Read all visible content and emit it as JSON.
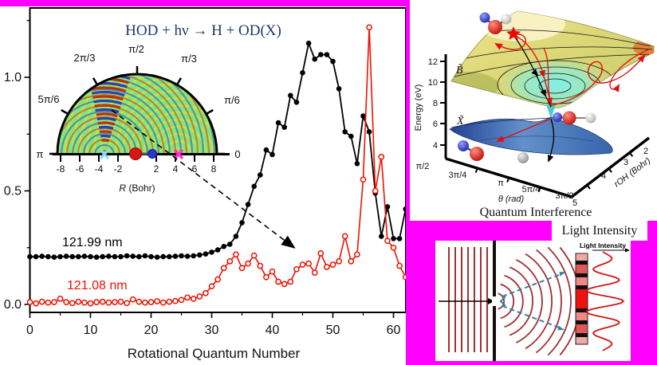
{
  "colors": {
    "background": "#ff00ff",
    "title": "#1f3864",
    "series_black": "#000000",
    "series_red": "#ee1100",
    "inset_green": "#7de87d",
    "wave_maroon": "#a03030",
    "ray_teal": "#3b7f9e"
  },
  "chart_data": {
    "type": "line",
    "title": "HOD + hν → H + OD(X)",
    "xlabel": "Rotational Quantum Number",
    "ylabel": "",
    "xlim": [
      0,
      62
    ],
    "ylim": [
      -0.03,
      1.31
    ],
    "x_ticks": [
      0,
      10,
      20,
      30,
      40,
      50,
      60
    ],
    "y_ticks": [
      "0.0",
      "0.5",
      "1.0"
    ],
    "grid": false,
    "legend_position": "inside-left",
    "series": [
      {
        "name": "121.99 nm",
        "color": "#000000",
        "marker": "filled-circle",
        "values": [
          0.21,
          0.21,
          0.212,
          0.21,
          0.208,
          0.21,
          0.212,
          0.21,
          0.21,
          0.212,
          0.21,
          0.208,
          0.21,
          0.212,
          0.21,
          0.21,
          0.214,
          0.212,
          0.21,
          0.214,
          0.21,
          0.208,
          0.21,
          0.21,
          0.212,
          0.214,
          0.212,
          0.214,
          0.218,
          0.222,
          0.23,
          0.24,
          0.255,
          0.265,
          0.3,
          0.36,
          0.44,
          0.52,
          0.57,
          0.68,
          0.66,
          0.8,
          0.78,
          0.92,
          0.89,
          1.02,
          1.15,
          1.08,
          1.1,
          1.1,
          1.07,
          0.95,
          0.76,
          0.74,
          0.62,
          0.83,
          0.76,
          0.49,
          0.3,
          0.43,
          0.29,
          0.29,
          0.42
        ]
      },
      {
        "name": "121.08 nm",
        "color": "#ee1100",
        "marker": "open-circle",
        "values": [
          0.01,
          0.005,
          0.012,
          0.008,
          0.01,
          0.025,
          0.01,
          0.006,
          0.012,
          0.008,
          0.005,
          0.01,
          0.012,
          0.008,
          0.01,
          0.012,
          0.006,
          0.022,
          0.012,
          0.008,
          0.01,
          0.014,
          0.008,
          0.012,
          0.015,
          0.02,
          0.03,
          0.025,
          0.035,
          0.05,
          0.08,
          0.11,
          0.16,
          0.19,
          0.22,
          0.16,
          0.18,
          0.215,
          0.17,
          0.12,
          0.145,
          0.1,
          0.09,
          0.1,
          0.155,
          0.175,
          0.18,
          0.14,
          0.225,
          0.165,
          0.175,
          0.19,
          0.3,
          0.19,
          0.22,
          0.55,
          1.22,
          0.5,
          0.65,
          0.28,
          0.25,
          0.17,
          0.12
        ]
      }
    ]
  },
  "inset": {
    "angle_labels": [
      "π/2",
      "π/3",
      "2π/3",
      "π/6",
      "5π/6",
      "π",
      "0"
    ],
    "r_ticks": [
      -8,
      -6,
      -4,
      -2,
      2,
      4,
      6,
      8
    ],
    "r_axis_label": "R (Bohr)"
  },
  "surface_panel": {
    "energy_axis_label": "Energy (eV)",
    "energy_ticks": [
      "12",
      "10",
      "8",
      "6",
      "4"
    ],
    "theta_axis_label": "θ (rad)",
    "theta_ticks": [
      "π/2",
      "3π/4",
      "π",
      "5π/4",
      "3π/2"
    ],
    "roh_axis_label": "rOH (Bohr)",
    "roh_ticks": [
      "5",
      "4",
      "3",
      "2"
    ],
    "upper_surface_label": "B̃",
    "lower_surface_label": "X̃",
    "caption": "Quantum Interference"
  },
  "light_panel": {
    "strip_label": "Light Intensity",
    "inner_label": "Light Intensity"
  }
}
